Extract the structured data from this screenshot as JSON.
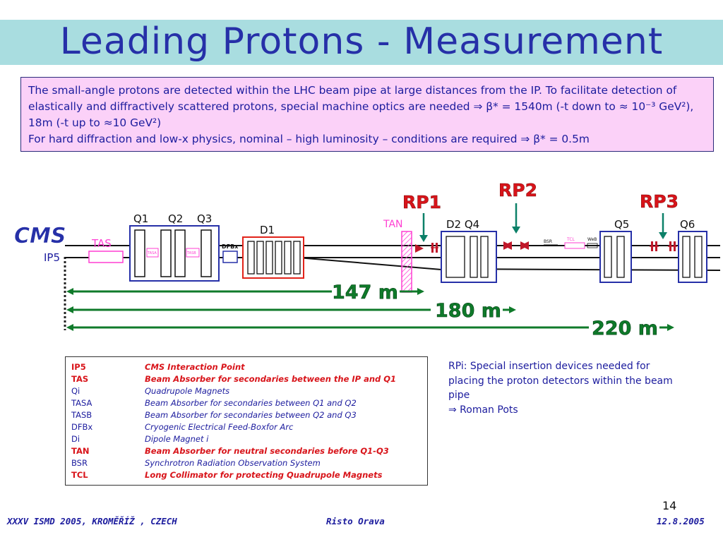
{
  "slide": {
    "title": "Leading Protons - Measurement",
    "intro": {
      "line1": "The small-angle protons are detected within the LHC beam pipe at large distances from the IP. To facilitate detection of elastically and diffractively scattered protons, special machine optics are needed ⇒ β* = 1540m (-t down to ≈ 10⁻³ GeV²), 18m (-t up to ≈10 GeV²)",
      "line2": "For hard diffraction and low-x physics, nominal – high luminosity – conditions are required ⇒ β* = 0.5m"
    },
    "page_number": "14",
    "footer": {
      "left": "XXXV ISMD 2005, KROMĚŘÍŽ , CZECH",
      "center": "Risto Orava",
      "right": "12.8.2005"
    }
  },
  "diagram": {
    "labels": {
      "cms": "CMS",
      "ip5": "IP5",
      "rp1": "RP1",
      "rp2": "RP2",
      "rp3": "RP3",
      "tan": "TAN",
      "tas": "TAS",
      "tasa": "TASA",
      "tasb": "TASB",
      "dfbx": "DFBx",
      "bsr": "BSR",
      "tcl": "TCL",
      "web": "WeB",
      "q1": "Q1",
      "q2": "Q2",
      "q3": "Q3",
      "d1": "D1",
      "d2q4": "D2 Q4",
      "q5": "Q5",
      "q6": "Q6"
    },
    "distances": {
      "d147": "147 m",
      "d180": "180 m",
      "d220": "220 m"
    },
    "colors": {
      "label_blue": "#1c1c9e",
      "rp_red": "#d8141a",
      "arrow_teal": "#0c8068",
      "tan_magenta": "#ff3fd2",
      "dist_green": "#0f7a2a",
      "element_outline": "#2630a8"
    }
  },
  "legend": [
    {
      "term": "IP5",
      "desc": "CMS Interaction Point",
      "highlight": true
    },
    {
      "term": "TAS",
      "desc": "Beam Absorber for secondaries between the IP and Q1",
      "highlight": true
    },
    {
      "term": "Qi",
      "desc": "Quadrupole Magnets",
      "highlight": false
    },
    {
      "term": "TASA",
      "desc": "Beam Absorber for secondaries between Q1 and Q2",
      "highlight": false
    },
    {
      "term": "TASB",
      "desc": "Beam Absorber for secondaries between Q2 and Q3",
      "highlight": false
    },
    {
      "term": "DFBx",
      "desc": "Cryogenic Electrical Feed-Boxfor Arc",
      "highlight": false
    },
    {
      "term": "Di",
      "desc": "Dipole Magnet i",
      "highlight": false
    },
    {
      "term": "TAN",
      "desc": "Beam Absorber for neutral secondaries before Q1-Q3",
      "highlight": true
    },
    {
      "term": "BSR",
      "desc": "Synchrotron Radiation Observation System",
      "highlight": false
    },
    {
      "term": "TCL",
      "desc": "Long Collimator for protecting Quadrupole Magnets",
      "highlight": true
    }
  ],
  "rp_note": {
    "line1": "RPi: Special insertion devices needed for placing the proton detectors within the beam pipe",
    "line2": "⇒ Roman Pots"
  }
}
